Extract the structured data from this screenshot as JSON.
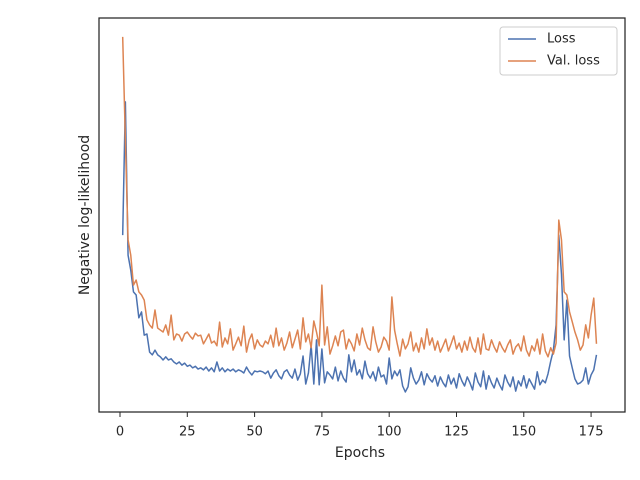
{
  "chart_data": {
    "type": "line",
    "xlabel": "Epochs",
    "ylabel": "Negative log-likelihood",
    "x": [
      1,
      2,
      3,
      4,
      5,
      6,
      7,
      8,
      9,
      10,
      11,
      12,
      13,
      14,
      15,
      16,
      17,
      18,
      19,
      20,
      21,
      22,
      23,
      24,
      25,
      26,
      27,
      28,
      29,
      30,
      31,
      32,
      33,
      34,
      35,
      36,
      37,
      38,
      39,
      40,
      41,
      42,
      43,
      44,
      45,
      46,
      47,
      48,
      49,
      50,
      51,
      52,
      53,
      54,
      55,
      56,
      57,
      58,
      59,
      60,
      61,
      62,
      63,
      64,
      65,
      66,
      67,
      68,
      69,
      70,
      71,
      72,
      73,
      74,
      75,
      76,
      77,
      78,
      79,
      80,
      81,
      82,
      83,
      84,
      85,
      86,
      87,
      88,
      89,
      90,
      91,
      92,
      93,
      94,
      95,
      96,
      97,
      98,
      99,
      100,
      101,
      102,
      103,
      104,
      105,
      106,
      107,
      108,
      109,
      110,
      111,
      112,
      113,
      114,
      115,
      116,
      117,
      118,
      119,
      120,
      121,
      122,
      123,
      124,
      125,
      126,
      127,
      128,
      129,
      130,
      131,
      132,
      133,
      134,
      135,
      136,
      137,
      138,
      139,
      140,
      141,
      142,
      143,
      144,
      145,
      146,
      147,
      148,
      149,
      150,
      151,
      152,
      153,
      154,
      155,
      156,
      157,
      158,
      159,
      160,
      161,
      162,
      163,
      164,
      165,
      166,
      167,
      168,
      169,
      170,
      171,
      172,
      173,
      174,
      175,
      176,
      177
    ],
    "series": [
      {
        "name": "Loss",
        "color": "#4c72b0",
        "values": [
          44.9,
          78.7,
          39.8,
          36.0,
          30.5,
          29.7,
          23.9,
          25.4,
          19.5,
          19.8,
          15.2,
          14.5,
          15.7,
          14.5,
          14.0,
          13.2,
          14.0,
          13.2,
          13.5,
          12.7,
          12.2,
          12.7,
          11.9,
          12.4,
          11.6,
          11.9,
          11.2,
          11.6,
          10.9,
          11.2,
          10.7,
          11.4,
          10.4,
          11.2,
          10.2,
          12.7,
          10.4,
          11.2,
          10.2,
          10.9,
          10.4,
          10.9,
          10.2,
          10.7,
          10.4,
          9.9,
          11.4,
          10.2,
          9.4,
          10.4,
          10.2,
          10.4,
          10.2,
          9.7,
          10.4,
          8.6,
          9.9,
          10.7,
          9.2,
          8.4,
          10.2,
          10.7,
          9.4,
          8.6,
          10.9,
          8.1,
          9.7,
          14.2,
          7.1,
          9.9,
          17.0,
          7.1,
          18.3,
          6.9,
          16.0,
          7.4,
          10.2,
          9.4,
          8.4,
          11.4,
          7.9,
          10.4,
          8.6,
          7.6,
          14.5,
          10.2,
          13.2,
          9.4,
          10.7,
          8.4,
          12.9,
          9.7,
          8.6,
          10.2,
          7.9,
          11.4,
          8.9,
          9.4,
          7.1,
          13.7,
          8.4,
          10.4,
          9.2,
          10.7,
          6.6,
          5.1,
          6.4,
          11.2,
          8.6,
          7.1,
          8.1,
          10.2,
          6.9,
          9.7,
          8.4,
          7.6,
          9.2,
          6.6,
          8.9,
          7.4,
          6.4,
          9.4,
          7.1,
          8.6,
          6.1,
          9.7,
          7.9,
          6.6,
          8.9,
          7.4,
          5.6,
          9.9,
          7.6,
          6.4,
          10.4,
          5.8,
          9.2,
          7.4,
          6.1,
          8.6,
          6.9,
          5.6,
          9.4,
          7.6,
          6.4,
          8.9,
          5.3,
          7.9,
          6.6,
          9.2,
          6.1,
          8.4,
          7.1,
          5.8,
          10.2,
          6.9,
          8.1,
          7.4,
          9.7,
          12.9,
          15.7,
          22.1,
          44.9,
          35.0,
          18.3,
          28.4,
          14.2,
          11.2,
          8.4,
          7.1,
          7.4,
          8.1,
          11.2,
          7.1,
          9.4,
          10.7,
          14.5
        ]
      },
      {
        "name": "Val. loss",
        "color": "#dd8452",
        "values": [
          95.2,
          69.0,
          43.7,
          39.8,
          32.2,
          33.5,
          30.5,
          29.7,
          28.4,
          23.4,
          22.1,
          21.3,
          25.9,
          21.3,
          20.8,
          20.3,
          22.1,
          19.5,
          24.6,
          18.3,
          19.8,
          19.5,
          18.0,
          19.8,
          20.3,
          19.3,
          18.5,
          20.0,
          19.3,
          19.5,
          17.3,
          18.5,
          19.8,
          17.5,
          18.0,
          16.8,
          22.8,
          16.5,
          18.8,
          17.3,
          21.1,
          15.7,
          17.3,
          19.0,
          16.8,
          21.8,
          15.2,
          18.3,
          19.8,
          16.0,
          18.3,
          17.0,
          16.5,
          18.0,
          17.3,
          19.5,
          16.5,
          21.3,
          16.8,
          18.8,
          15.7,
          17.5,
          20.3,
          16.3,
          18.5,
          20.8,
          16.0,
          23.9,
          17.8,
          19.8,
          16.3,
          23.1,
          20.3,
          16.8,
          32.2,
          17.0,
          21.6,
          14.7,
          16.8,
          19.3,
          16.8,
          20.3,
          20.8,
          16.0,
          18.5,
          17.3,
          15.5,
          19.8,
          17.0,
          21.3,
          18.3,
          16.3,
          15.7,
          21.6,
          17.8,
          15.2,
          16.5,
          19.0,
          18.0,
          15.7,
          29.2,
          20.8,
          17.3,
          14.2,
          18.5,
          16.0,
          17.3,
          20.3,
          15.5,
          17.5,
          15.2,
          18.8,
          16.0,
          21.1,
          17.0,
          18.8,
          15.7,
          18.0,
          15.2,
          16.8,
          18.5,
          15.5,
          17.3,
          19.3,
          16.0,
          17.5,
          15.2,
          18.0,
          15.7,
          19.0,
          16.3,
          15.2,
          18.8,
          14.7,
          19.8,
          16.0,
          15.7,
          18.3,
          16.5,
          15.2,
          17.8,
          16.3,
          15.2,
          17.0,
          18.3,
          14.7,
          16.5,
          17.3,
          15.5,
          19.3,
          15.7,
          14.2,
          16.8,
          15.5,
          18.5,
          14.7,
          19.8,
          15.5,
          14.0,
          16.3,
          14.7,
          17.5,
          48.7,
          43.7,
          30.5,
          29.7,
          25.4,
          22.9,
          20.3,
          18.3,
          15.7,
          17.0,
          22.1,
          18.8,
          24.6,
          28.9,
          17.3
        ]
      }
    ],
    "xlim": [
      -7.8,
      187.6
    ],
    "xticks": [
      0,
      25,
      50,
      75,
      100,
      125,
      150,
      175
    ],
    "ylim": [
      0,
      100
    ],
    "legend": "upper right",
    "grid": false
  }
}
